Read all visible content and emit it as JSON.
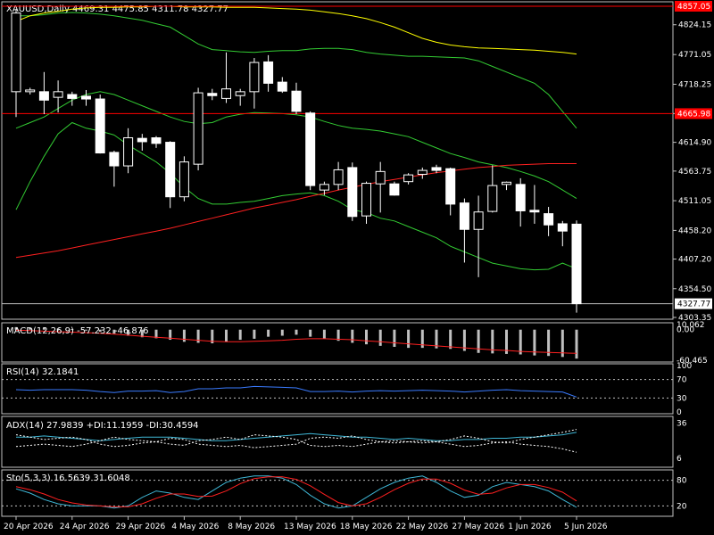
{
  "header": {
    "symbol_line": "XAUUSD,Daily  4469.31 4475.85 4311.78 4327.77"
  },
  "price_axis": {
    "ticks": [
      "4824.15",
      "4771.05",
      "4718.25",
      "4666.15",
      "4614.90",
      "4563.75",
      "4511.05",
      "4458.20",
      "4407.20",
      "4354.50",
      "4303.35"
    ],
    "tag_top": "4857.05",
    "tag_mid": "4665.98",
    "tag_close": "4327.77"
  },
  "date_axis": [
    "20 Apr 2026",
    "24 Apr 2026",
    "29 Apr 2026",
    "4 May 2026",
    "8 May 2026",
    "13 May 2026",
    "18 May 2026",
    "22 May 2026",
    "27 May 2026",
    "1 Jun 2026",
    "5 Jun 2026"
  ],
  "panels": {
    "macd": {
      "label": "MACD(12,26,9) -57.232 -46.876",
      "ticks": [
        "10.062",
        "0.00",
        "-60.465"
      ]
    },
    "rsi": {
      "label": "RSI(14) 32.1841",
      "ticks": [
        "100",
        "70",
        "30",
        "0"
      ]
    },
    "adx": {
      "label": "ADX(14) 27.9839 +DI:11.1959 -DI:30.4594",
      "ticks": [
        "36",
        "6"
      ]
    },
    "sto": {
      "label": "Sto(5,3,3) 16.5639 31.6048",
      "ticks": [
        "80",
        "20"
      ]
    }
  },
  "colors": {
    "bg": "#000000",
    "candle": "#ffffff",
    "grid": "#c0c0c0",
    "ma_yellow": "#ffff00",
    "ma_red": "#ff2020",
    "bollinger": "#33cc33",
    "macd_signal": "#ff2020",
    "rsi_line": "#3a7bff",
    "adx_line": "#3fb7d6",
    "sto_main": "#3fb7d6",
    "sto_signal": "#ff2020",
    "level_line": "#ff0000"
  },
  "chart_data": {
    "type": "candlestick",
    "instrument": "XAUUSD",
    "timeframe": "Daily",
    "ylim": [
      4303.35,
      4857.05
    ],
    "candles": [
      {
        "o": 4705,
        "h": 4852,
        "l": 4660,
        "c": 4845
      },
      {
        "o": 4705,
        "h": 4712,
        "l": 4700,
        "c": 4708
      },
      {
        "o": 4705,
        "h": 4740,
        "l": 4665,
        "c": 4690
      },
      {
        "o": 4695,
        "h": 4725,
        "l": 4668,
        "c": 4705
      },
      {
        "o": 4700,
        "h": 4705,
        "l": 4680,
        "c": 4693
      },
      {
        "o": 4697,
        "h": 4708,
        "l": 4680,
        "c": 4692
      },
      {
        "o": 4692,
        "h": 4700,
        "l": 4595,
        "c": 4596
      },
      {
        "o": 4597,
        "h": 4600,
        "l": 4536,
        "c": 4573
      },
      {
        "o": 4573,
        "h": 4640,
        "l": 4560,
        "c": 4623
      },
      {
        "o": 4622,
        "h": 4630,
        "l": 4600,
        "c": 4616
      },
      {
        "o": 4623,
        "h": 4626,
        "l": 4605,
        "c": 4613
      },
      {
        "o": 4615,
        "h": 4617,
        "l": 4498,
        "c": 4518
      },
      {
        "o": 4518,
        "h": 4590,
        "l": 4510,
        "c": 4580
      },
      {
        "o": 4576,
        "h": 4712,
        "l": 4565,
        "c": 4703
      },
      {
        "o": 4702,
        "h": 4710,
        "l": 4690,
        "c": 4698
      },
      {
        "o": 4693,
        "h": 4775,
        "l": 4685,
        "c": 4710
      },
      {
        "o": 4698,
        "h": 4710,
        "l": 4680,
        "c": 4705
      },
      {
        "o": 4705,
        "h": 4765,
        "l": 4675,
        "c": 4757
      },
      {
        "o": 4758,
        "h": 4770,
        "l": 4705,
        "c": 4720
      },
      {
        "o": 4722,
        "h": 4731,
        "l": 4703,
        "c": 4706
      },
      {
        "o": 4706,
        "h": 4721,
        "l": 4665,
        "c": 4670
      },
      {
        "o": 4667,
        "h": 4670,
        "l": 4530,
        "c": 4538
      },
      {
        "o": 4530,
        "h": 4545,
        "l": 4521,
        "c": 4540
      },
      {
        "o": 4540,
        "h": 4580,
        "l": 4530,
        "c": 4566
      },
      {
        "o": 4570,
        "h": 4579,
        "l": 4475,
        "c": 4483
      },
      {
        "o": 4484,
        "h": 4545,
        "l": 4470,
        "c": 4542
      },
      {
        "o": 4541,
        "h": 4580,
        "l": 4490,
        "c": 4563
      },
      {
        "o": 4541,
        "h": 4545,
        "l": 4520,
        "c": 4521
      },
      {
        "o": 4545,
        "h": 4560,
        "l": 4540,
        "c": 4557
      },
      {
        "o": 4558,
        "h": 4570,
        "l": 4550,
        "c": 4565
      },
      {
        "o": 4570,
        "h": 4575,
        "l": 4560,
        "c": 4565
      },
      {
        "o": 4568,
        "h": 4570,
        "l": 4485,
        "c": 4505
      },
      {
        "o": 4507,
        "h": 4515,
        "l": 4401,
        "c": 4460
      },
      {
        "o": 4460,
        "h": 4520,
        "l": 4375,
        "c": 4491
      },
      {
        "o": 4492,
        "h": 4574,
        "l": 4490,
        "c": 4538
      },
      {
        "o": 4540,
        "h": 4545,
        "l": 4530,
        "c": 4544
      },
      {
        "o": 4540,
        "h": 4551,
        "l": 4465,
        "c": 4493
      },
      {
        "o": 4494,
        "h": 4539,
        "l": 4470,
        "c": 4491
      },
      {
        "o": 4488,
        "h": 4500,
        "l": 4448,
        "c": 4468
      },
      {
        "o": 4470,
        "h": 4475,
        "l": 4430,
        "c": 4457
      },
      {
        "o": 4469.31,
        "h": 4475.85,
        "l": 4311.78,
        "c": 4327.77
      }
    ],
    "macd_hist": [
      5,
      4,
      3,
      2,
      1,
      0,
      -4,
      -8,
      -12,
      -15,
      -17,
      -20,
      -24,
      -26,
      -27,
      -24,
      -20,
      -18,
      -14,
      -12,
      -10,
      -14,
      -18,
      -22,
      -26,
      -29,
      -32,
      -34,
      -36,
      -36,
      -37,
      -38,
      -42,
      -46,
      -47,
      -48,
      -49,
      -51,
      -52,
      -54,
      -57.232
    ],
    "macd_signal": [
      -1,
      -2,
      -3,
      -4,
      -5,
      -6,
      -7,
      -9,
      -11,
      -13,
      -15,
      -17,
      -19,
      -21,
      -23,
      -24,
      -24,
      -23,
      -22,
      -21,
      -19,
      -18,
      -18,
      -19,
      -20,
      -22,
      -24,
      -26,
      -28,
      -30,
      -32,
      -34,
      -36,
      -38,
      -40,
      -41,
      -43,
      -44,
      -45,
      -46,
      -46.876
    ],
    "rsi": [
      48,
      47,
      48,
      48,
      48,
      47,
      44,
      42,
      45,
      45,
      46,
      42,
      44,
      50,
      50,
      52,
      52,
      55,
      54,
      53,
      52,
      44,
      44,
      45,
      43,
      45,
      46,
      45,
      46,
      47,
      46,
      45,
      43,
      45,
      47,
      48,
      46,
      45,
      44,
      43,
      32.1841
    ],
    "adx": {
      "adx": [
        24,
        24,
        25,
        24,
        23,
        22,
        21,
        22,
        23,
        24,
        24,
        24,
        23,
        22,
        21,
        21,
        22,
        23,
        24,
        25,
        26,
        27,
        26,
        25,
        24,
        24,
        23,
        22,
        23,
        22,
        21,
        21,
        22,
        22,
        23,
        23,
        24,
        24,
        25,
        26,
        27.9839
      ],
      "plus": [
        26,
        24,
        22,
        23,
        24,
        22,
        18,
        16,
        17,
        19,
        20,
        18,
        17,
        21,
        22,
        24,
        22,
        26,
        25,
        24,
        22,
        17,
        16,
        17,
        16,
        18,
        20,
        19,
        20,
        21,
        20,
        18,
        16,
        17,
        19,
        20,
        18,
        17,
        16,
        14,
        11.1959
      ],
      "minus": [
        16,
        17,
        18,
        17,
        16,
        18,
        21,
        24,
        22,
        21,
        20,
        23,
        22,
        18,
        17,
        16,
        17,
        15,
        16,
        17,
        18,
        23,
        24,
        23,
        25,
        22,
        20,
        21,
        20,
        19,
        20,
        22,
        25,
        23,
        20,
        19,
        22,
        24,
        26,
        28,
        30.4594
      ]
    },
    "sto": {
      "main": [
        60,
        50,
        35,
        25,
        20,
        20,
        20,
        15,
        20,
        40,
        55,
        50,
        40,
        35,
        55,
        75,
        85,
        90,
        90,
        85,
        70,
        45,
        25,
        15,
        20,
        40,
        60,
        75,
        85,
        90,
        75,
        55,
        40,
        45,
        65,
        75,
        70,
        65,
        55,
        35,
        16.5639
      ],
      "signal": [
        65,
        58,
        48,
        35,
        27,
        22,
        20,
        18,
        18,
        25,
        38,
        48,
        48,
        42,
        43,
        55,
        72,
        84,
        88,
        88,
        82,
        67,
        47,
        28,
        20,
        25,
        40,
        58,
        73,
        83,
        83,
        73,
        57,
        47,
        50,
        62,
        70,
        70,
        63,
        52,
        31.6048
      ]
    },
    "ma_yellow": [
      4830,
      4840,
      4845,
      4848,
      4852,
      4854,
      4855,
      4855,
      4856,
      4856,
      4857,
      4857,
      4856,
      4856,
      4856,
      4855,
      4855,
      4855,
      4854,
      4853,
      4852,
      4850,
      4847,
      4844,
      4840,
      4835,
      4828,
      4820,
      4810,
      4800,
      4793,
      4788,
      4785,
      4783,
      4782,
      4781,
      4780,
      4779,
      4777,
      4775,
      4772
    ],
    "ma_red": [
      4410,
      4414,
      4418,
      4422,
      4427,
      4432,
      4437,
      4442,
      4447,
      4452,
      4457,
      4462,
      4468,
      4474,
      4480,
      4486,
      4492,
      4498,
      4503,
      4508,
      4513,
      4519,
      4524,
      4530,
      4535,
      4540,
      4545,
      4549,
      4553,
      4557,
      4561,
      4564,
      4567,
      4570,
      4572,
      4574,
      4575,
      4576,
      4577,
      4577,
      4577
    ],
    "bb_mid": [
      4640,
      4650,
      4660,
      4675,
      4690,
      4700,
      4705,
      4700,
      4690,
      4680,
      4670,
      4660,
      4652,
      4648,
      4650,
      4660,
      4665,
      4668,
      4667,
      4666,
      4664,
      4660,
      4652,
      4645,
      4640,
      4638,
      4635,
      4630,
      4625,
      4615,
      4605,
      4595,
      4588,
      4580,
      4575,
      4570,
      4563,
      4555,
      4545,
      4530,
      4515
    ],
    "bb_upper": [
      4840,
      4840,
      4842,
      4845,
      4846,
      4845,
      4843,
      4840,
      4836,
      4832,
      4826,
      4820,
      4805,
      4790,
      4780,
      4778,
      4776,
      4775,
      4777,
      4778,
      4778,
      4781,
      4782,
      4782,
      4780,
      4775,
      4772,
      4770,
      4768,
      4768,
      4767,
      4766,
      4765,
      4760,
      4750,
      4740,
      4730,
      4720,
      4700,
      4670,
      4640
    ],
    "bb_lower": [
      4495,
      4545,
      4590,
      4630,
      4650,
      4640,
      4635,
      4628,
      4610,
      4595,
      4580,
      4560,
      4535,
      4515,
      4505,
      4505,
      4508,
      4510,
      4515,
      4520,
      4523,
      4525,
      4520,
      4510,
      4495,
      4490,
      4480,
      4475,
      4465,
      4455,
      4445,
      4430,
      4420,
      4410,
      4400,
      4395,
      4390,
      4388,
      4389,
      4400,
      4390
    ]
  }
}
